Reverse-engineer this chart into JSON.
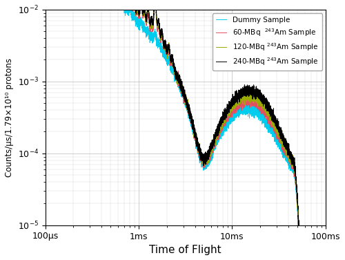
{
  "title": "",
  "xlabel": "Time of Flight",
  "ylabel": "Counts/μs/1.79×10¹⁰ protons",
  "legend_labels": [
    "240-MBq $^{243}$Am Sample",
    "120-MBq $^{243}$Am Sample",
    "60-MBq  $^{243}$Am Sample",
    "Dummy Sample"
  ],
  "line_colors": [
    "#000000",
    "#9aaa00",
    "#e05060",
    "#00ccee"
  ],
  "background_color": "#ffffff",
  "grid_color": "#aaaaaa",
  "xtick_labels": [
    "100μs",
    "1ms",
    "10ms",
    "100ms"
  ],
  "xtick_values_us": [
    100,
    1000,
    10000,
    100000
  ],
  "xlim": [
    100,
    100000
  ],
  "ylim": [
    1e-05,
    0.01
  ]
}
